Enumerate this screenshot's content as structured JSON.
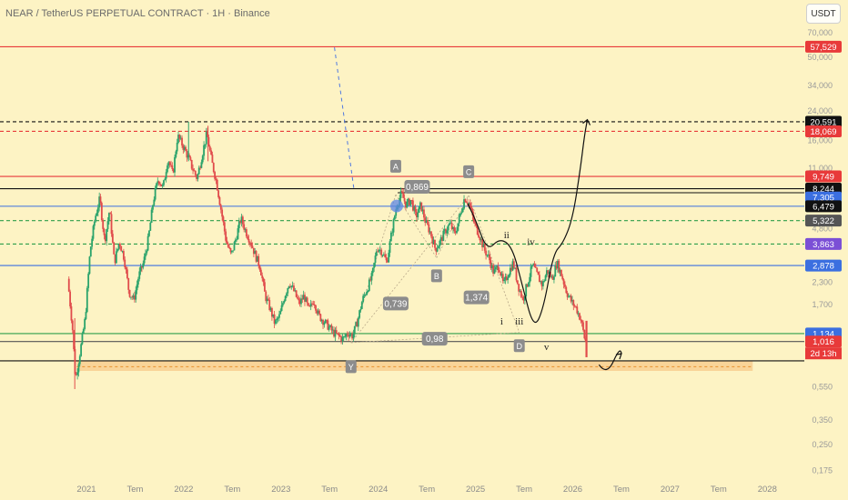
{
  "header": {
    "title": "NEAR / TetherUS PERPETUAL CONTRACT · 1H · Binance",
    "unit_button": "USDT"
  },
  "chart_data": {
    "type": "candlestick",
    "title": "NEAR / TetherUS PERPETUAL CONTRACT · 1H · Binance",
    "scale": "log",
    "y_range": [
      0.15,
      85
    ],
    "x_labels": [
      "2021",
      "Tem",
      "2022",
      "Tem",
      "2023",
      "Tem",
      "2024",
      "Tem",
      "2025",
      "Tem",
      "2026",
      "Tem",
      "2027",
      "Tem",
      "2028"
    ],
    "y_ticks": [
      "70,000",
      "50,000",
      "34,000",
      "24,000",
      "16,000",
      "11,000",
      "7,305",
      "6,479",
      "4,800",
      "3,863",
      "2,878",
      "2,300",
      "1,700",
      "1,134",
      "1,016",
      "0,550",
      "0,350",
      "0,250",
      "0,175"
    ],
    "price_trace": [
      [
        2020.82,
        2.4
      ],
      [
        2020.87,
        1.2
      ],
      [
        2020.9,
        0.6
      ],
      [
        2020.95,
        0.9
      ],
      [
        2021.0,
        1.4
      ],
      [
        2021.05,
        3.5
      ],
      [
        2021.1,
        5.5
      ],
      [
        2021.15,
        7.2
      ],
      [
        2021.2,
        4.0
      ],
      [
        2021.25,
        6.2
      ],
      [
        2021.3,
        3.0
      ],
      [
        2021.35,
        4.0
      ],
      [
        2021.4,
        3.2
      ],
      [
        2021.45,
        2.0
      ],
      [
        2021.5,
        1.8
      ],
      [
        2021.55,
        2.5
      ],
      [
        2021.6,
        3.0
      ],
      [
        2021.65,
        4.2
      ],
      [
        2021.7,
        7.0
      ],
      [
        2021.75,
        9.5
      ],
      [
        2021.8,
        8.3
      ],
      [
        2021.85,
        12.5
      ],
      [
        2021.9,
        10.0
      ],
      [
        2021.95,
        17.0
      ],
      [
        2022.0,
        15.0
      ],
      [
        2022.05,
        13.0
      ],
      [
        2022.1,
        11.0
      ],
      [
        2022.15,
        9.5
      ],
      [
        2022.2,
        13.0
      ],
      [
        2022.25,
        17.5
      ],
      [
        2022.3,
        12.0
      ],
      [
        2022.35,
        9.0
      ],
      [
        2022.4,
        6.0
      ],
      [
        2022.45,
        4.0
      ],
      [
        2022.5,
        3.3
      ],
      [
        2022.55,
        4.2
      ],
      [
        2022.6,
        5.5
      ],
      [
        2022.65,
        4.6
      ],
      [
        2022.7,
        4.0
      ],
      [
        2022.75,
        3.3
      ],
      [
        2022.8,
        2.8
      ],
      [
        2022.85,
        1.9
      ],
      [
        2022.9,
        1.6
      ],
      [
        2022.95,
        1.3
      ],
      [
        2023.0,
        1.45
      ],
      [
        2023.05,
        1.9
      ],
      [
        2023.1,
        2.3
      ],
      [
        2023.15,
        2.0
      ],
      [
        2023.2,
        1.7
      ],
      [
        2023.25,
        1.9
      ],
      [
        2023.3,
        1.55
      ],
      [
        2023.35,
        1.8
      ],
      [
        2023.4,
        1.45
      ],
      [
        2023.45,
        1.35
      ],
      [
        2023.5,
        1.25
      ],
      [
        2023.55,
        1.15
      ],
      [
        2023.6,
        1.1
      ],
      [
        2023.65,
        1.05
      ],
      [
        2023.7,
        1.15
      ],
      [
        2023.75,
        1.1
      ],
      [
        2023.8,
        1.35
      ],
      [
        2023.85,
        1.8
      ],
      [
        2023.9,
        2.1
      ],
      [
        2023.95,
        2.5
      ],
      [
        2024.0,
        3.7
      ],
      [
        2024.05,
        3.5
      ],
      [
        2024.1,
        3.0
      ],
      [
        2024.15,
        4.5
      ],
      [
        2024.2,
        6.5
      ],
      [
        2024.25,
        7.7
      ],
      [
        2024.3,
        6.6
      ],
      [
        2024.35,
        7.1
      ],
      [
        2024.4,
        5.6
      ],
      [
        2024.45,
        6.6
      ],
      [
        2024.5,
        5.2
      ],
      [
        2024.55,
        4.5
      ],
      [
        2024.6,
        3.6
      ],
      [
        2024.65,
        4.0
      ],
      [
        2024.7,
        4.6
      ],
      [
        2024.75,
        5.1
      ],
      [
        2024.8,
        4.4
      ],
      [
        2024.85,
        5.6
      ],
      [
        2024.9,
        7.3
      ],
      [
        2024.95,
        6.7
      ],
      [
        2025.0,
        5.1
      ],
      [
        2025.05,
        4.4
      ],
      [
        2025.1,
        3.6
      ],
      [
        2025.15,
        3.2
      ],
      [
        2025.2,
        2.6
      ],
      [
        2025.25,
        2.9
      ],
      [
        2025.3,
        2.2
      ],
      [
        2025.35,
        2.6
      ],
      [
        2025.4,
        3.0
      ],
      [
        2025.45,
        2.2
      ],
      [
        2025.5,
        1.8
      ],
      [
        2025.55,
        2.3
      ],
      [
        2025.6,
        2.9
      ],
      [
        2025.65,
        2.5
      ],
      [
        2025.7,
        2.2
      ],
      [
        2025.75,
        2.7
      ],
      [
        2025.8,
        2.4
      ],
      [
        2025.85,
        3.0
      ],
      [
        2025.9,
        2.5
      ],
      [
        2025.95,
        2.0
      ],
      [
        2026.0,
        1.75
      ],
      [
        2026.05,
        1.6
      ],
      [
        2026.1,
        1.35
      ],
      [
        2026.14,
        1.016
      ]
    ],
    "horizontal_levels": [
      {
        "price": 57.529,
        "label": "57,529",
        "color": "#e83a3a",
        "style": "solid"
      },
      {
        "price": 20.591,
        "label": "20,591",
        "color": "#111111",
        "style": "dashed"
      },
      {
        "price": 18.069,
        "label": "18,069",
        "color": "#e83a3a",
        "style": "dashed"
      },
      {
        "price": 9.749,
        "label": "9,749",
        "color": "#e83a3a",
        "style": "solid"
      },
      {
        "price": 8.244,
        "label": "8,244",
        "color": "#111111",
        "style": "solid"
      },
      {
        "price": 6.479,
        "label": "6,479",
        "color": "#3b6fe0",
        "style": "solid"
      },
      {
        "price": 5.322,
        "label": "5,322",
        "color": "#2e9e4a",
        "style": "dashed"
      },
      {
        "price": 3.863,
        "label": "3,863",
        "color": "#2e9e4a",
        "style": "dashed"
      },
      {
        "price": 2.878,
        "label": "2,878",
        "color": "#3b6fe0",
        "style": "solid"
      },
      {
        "price": 1.134,
        "label": "1,134",
        "color": "#2e9e4a",
        "style": "solid"
      },
      {
        "price": 1.016,
        "label": "1,016",
        "color": "#555555",
        "style": "solid"
      },
      {
        "price": 0.78,
        "label": "",
        "color": "#111111",
        "style": "solid"
      }
    ],
    "price_tags": [
      {
        "price": 57.529,
        "text": "57,529",
        "bg": "#e83a3a",
        "fg": "#ffffff"
      },
      {
        "price": 20.591,
        "text": "20,591",
        "bg": "#111111",
        "fg": "#ffffff"
      },
      {
        "price": 18.069,
        "text": "18,069",
        "bg": "#e83a3a",
        "fg": "#ffffff"
      },
      {
        "price": 9.749,
        "text": "9,749",
        "bg": "#e83a3a",
        "fg": "#ffffff"
      },
      {
        "price": 8.244,
        "text": "8,244",
        "bg": "#111111",
        "fg": "#ffffff"
      },
      {
        "price": 7.305,
        "text": "7,305",
        "bg": "#3b6fe0",
        "fg": "#ffffff"
      },
      {
        "price": 6.479,
        "text": "6,479",
        "bg": "#111111",
        "fg": "#ffffff"
      },
      {
        "price": 5.322,
        "text": "5,322",
        "bg": "#555555",
        "fg": "#ffffff"
      },
      {
        "price": 3.863,
        "text": "3,863",
        "bg": "#7b4fd6",
        "fg": "#ffffff"
      },
      {
        "price": 2.878,
        "text": "2,878",
        "bg": "#3b6fe0",
        "fg": "#ffffff"
      },
      {
        "price": 1.134,
        "text": "1,134",
        "bg": "#3b6fe0",
        "fg": "#ffffff"
      },
      {
        "price": 1.016,
        "text": "1,016",
        "bg": "#e83a3a",
        "fg": "#ffffff"
      }
    ],
    "countdown": "2d 13h",
    "support_zone": [
      0.68,
      0.78
    ],
    "wave_labels": [
      {
        "t": 2024.18,
        "p": 11.2,
        "text": "A",
        "box": true
      },
      {
        "t": 2024.93,
        "p": 10.4,
        "text": "C",
        "box": true
      },
      {
        "t": 2024.6,
        "p": 2.5,
        "text": "B",
        "box": true
      },
      {
        "t": 2025.45,
        "p": 0.96,
        "text": "D",
        "box": true
      },
      {
        "t": 2023.72,
        "p": 0.72,
        "text": "Y",
        "box": true
      },
      {
        "t": 2025.32,
        "p": 4.4,
        "text": "ii",
        "box": false
      },
      {
        "t": 2025.57,
        "p": 4.0,
        "text": "iv",
        "box": false
      },
      {
        "t": 2025.27,
        "p": 1.35,
        "text": "i",
        "box": false
      },
      {
        "t": 2025.45,
        "p": 1.35,
        "text": "iii",
        "box": false
      },
      {
        "t": 2025.73,
        "p": 0.95,
        "text": "v",
        "box": false
      }
    ],
    "ratio_labels": [
      {
        "t": 2024.4,
        "p": 8.4,
        "text": "0,869"
      },
      {
        "t": 2024.18,
        "p": 1.7,
        "text": "0,739"
      },
      {
        "t": 2025.01,
        "p": 1.85,
        "text": "1,374"
      },
      {
        "t": 2024.58,
        "p": 1.05,
        "text": "0,98"
      }
    ],
    "projection_path": [
      [
        2024.92,
        6.7
      ],
      [
        2025.0,
        5.4
      ],
      [
        2025.12,
        3.5
      ],
      [
        2025.25,
        4.2
      ],
      [
        2025.38,
        3.7
      ],
      [
        2025.48,
        2.2
      ],
      [
        2025.6,
        1.2
      ],
      [
        2025.7,
        1.6
      ],
      [
        2025.8,
        3.4
      ],
      [
        2025.9,
        3.9
      ],
      [
        2026.0,
        5.5
      ],
      [
        2026.08,
        11.0
      ],
      [
        2026.12,
        17.0
      ],
      [
        2026.15,
        21.2
      ]
    ],
    "future_arrow": [
      [
        2026.27,
        0.74
      ],
      [
        2026.35,
        0.7
      ],
      [
        2026.42,
        0.78
      ],
      [
        2026.5,
        0.86
      ]
    ]
  }
}
